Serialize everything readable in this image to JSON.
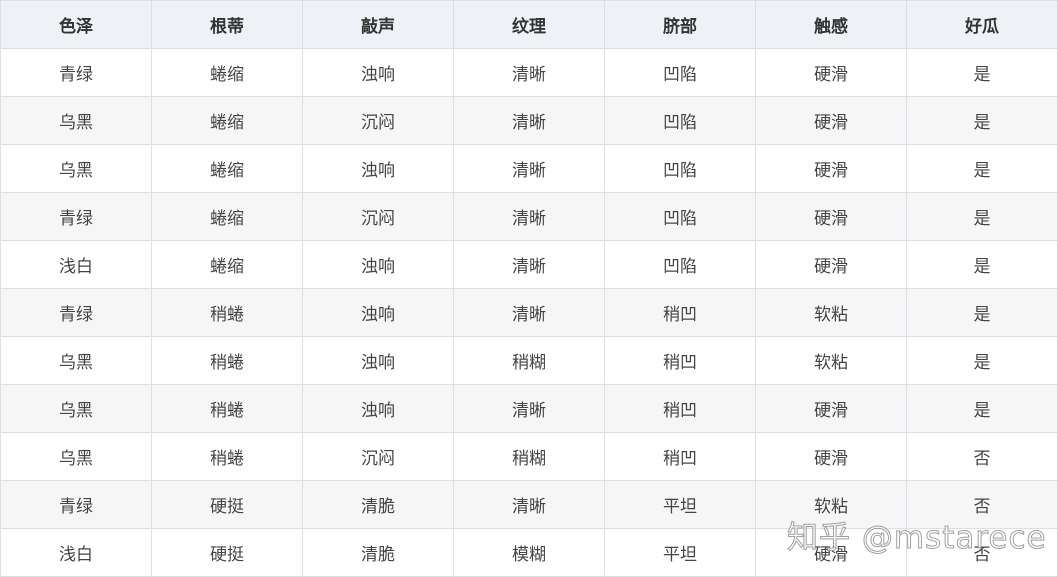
{
  "table": {
    "headers": [
      "色泽",
      "根蒂",
      "敲声",
      "纹理",
      "脐部",
      "触感",
      "好瓜"
    ],
    "rows": [
      [
        "青绿",
        "蜷缩",
        "浊响",
        "清晰",
        "凹陷",
        "硬滑",
        "是"
      ],
      [
        "乌黑",
        "蜷缩",
        "沉闷",
        "清晰",
        "凹陷",
        "硬滑",
        "是"
      ],
      [
        "乌黑",
        "蜷缩",
        "浊响",
        "清晰",
        "凹陷",
        "硬滑",
        "是"
      ],
      [
        "青绿",
        "蜷缩",
        "沉闷",
        "清晰",
        "凹陷",
        "硬滑",
        "是"
      ],
      [
        "浅白",
        "蜷缩",
        "浊响",
        "清晰",
        "凹陷",
        "硬滑",
        "是"
      ],
      [
        "青绿",
        "稍蜷",
        "浊响",
        "清晰",
        "稍凹",
        "软粘",
        "是"
      ],
      [
        "乌黑",
        "稍蜷",
        "浊响",
        "稍糊",
        "稍凹",
        "软粘",
        "是"
      ],
      [
        "乌黑",
        "稍蜷",
        "浊响",
        "清晰",
        "稍凹",
        "硬滑",
        "是"
      ],
      [
        "乌黑",
        "稍蜷",
        "沉闷",
        "稍糊",
        "稍凹",
        "硬滑",
        "否"
      ],
      [
        "青绿",
        "硬挺",
        "清脆",
        "清晰",
        "平坦",
        "软粘",
        "否"
      ],
      [
        "浅白",
        "硬挺",
        "清脆",
        "模糊",
        "平坦",
        "硬滑",
        "否"
      ]
    ]
  },
  "watermark": "知乎 @mstarece"
}
